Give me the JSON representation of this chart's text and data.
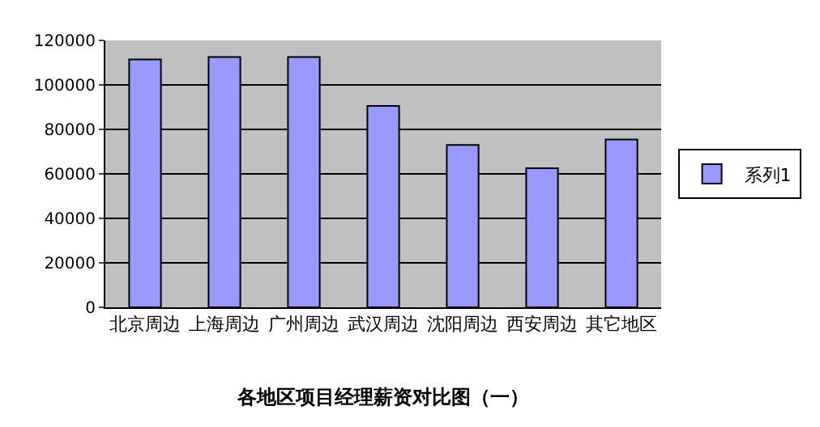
{
  "chart_data": {
    "type": "bar",
    "title": "各地区项目经理薪资对比图（一）",
    "categories": [
      "北京周边",
      "上海周边",
      "广州周边",
      "武汉周边",
      "沈阳周边",
      "西安周边",
      "其它地区"
    ],
    "series": [
      {
        "name": "系列1",
        "color": "#9999ff",
        "values": [
          111500,
          112500,
          112500,
          90500,
          73000,
          62500,
          75500
        ]
      }
    ],
    "ylim": [
      0,
      120000
    ],
    "yticks": [
      0,
      20000,
      40000,
      60000,
      80000,
      100000,
      120000
    ],
    "grid": "y",
    "legend": "right"
  }
}
